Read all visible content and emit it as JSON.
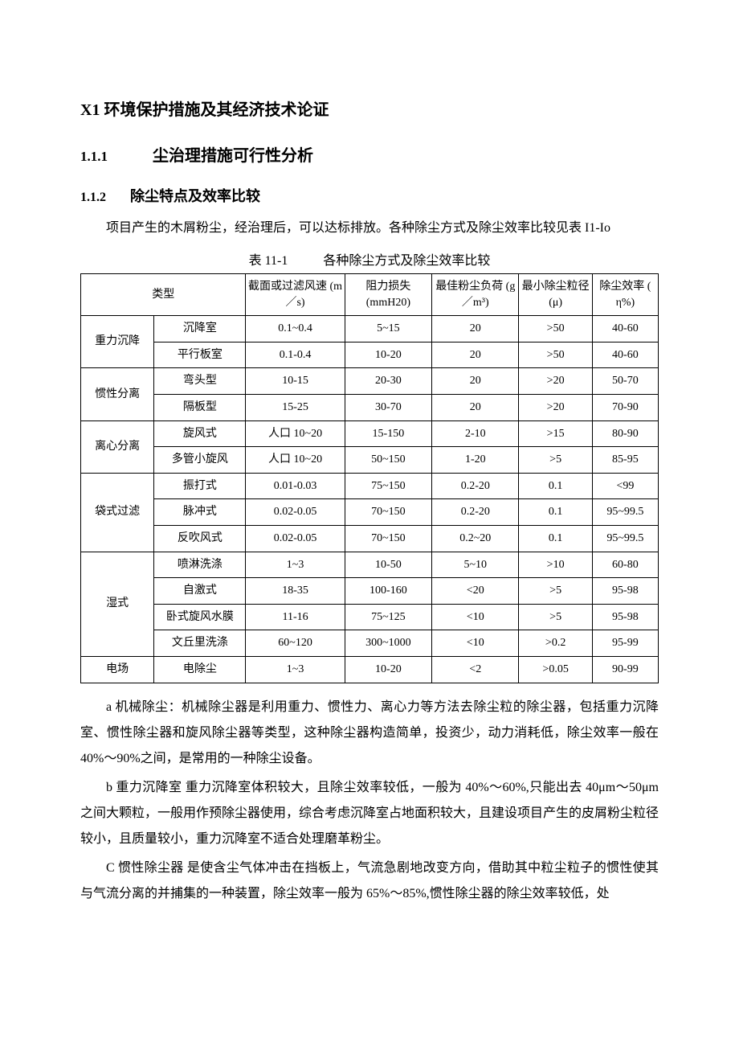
{
  "title": "X1 环境保护措施及其经济技术论证",
  "section_num": "1.1.1",
  "section_text": "尘治理措施可行性分析",
  "subsection_num": "1.1.2",
  "subsection_text": "除尘特点及效率比较",
  "intro_para": "项目产生的木屑粉尘，经治理后，可以达标排放。各种除尘方式及除尘效率比较见表 I1-Io",
  "table_num": "表 11-1",
  "table_title": "各种除尘方式及除尘效率比较",
  "headers": {
    "type": "类型",
    "velocity": "截面或过滤风速 (m／s)",
    "pressure_loss": "阻力损失 (mmH20)",
    "dust_load": "最佳粉尘负荷 (g／m³)",
    "min_particle": "最小除尘粒径 (μ)",
    "efficiency": "除尘效率 ( η%)"
  },
  "rows": [
    {
      "cat": "重力沉降",
      "sub": "沉降室",
      "v": "0.1~0.4",
      "loss": "5~15",
      "load": "20",
      "min": ">50",
      "eff": "40-60"
    },
    {
      "cat": "",
      "sub": "平行板室",
      "v": "0.1-0.4",
      "loss": "10-20",
      "load": "20",
      "min": ">50",
      "eff": "40-60"
    },
    {
      "cat": "惯性分离",
      "sub": "弯头型",
      "v": "10-15",
      "loss": "20-30",
      "load": "20",
      "min": ">20",
      "eff": "50-70"
    },
    {
      "cat": "",
      "sub": "隔板型",
      "v": "15-25",
      "loss": "30-70",
      "load": "20",
      "min": ">20",
      "eff": "70-90"
    },
    {
      "cat": "离心分离",
      "sub": "旋风式",
      "v": "人口 10~20",
      "loss": "15-150",
      "load": "2-10",
      "min": ">15",
      "eff": "80-90"
    },
    {
      "cat": "",
      "sub": "多管小旋风",
      "v": "人口 10~20",
      "loss": "50~150",
      "load": "1-20",
      "min": ">5",
      "eff": "85-95"
    },
    {
      "cat": "袋式过滤",
      "sub": "振打式",
      "v": "0.01-0.03",
      "loss": "75~150",
      "load": "0.2-20",
      "min": "0.1",
      "eff": "<99"
    },
    {
      "cat": "",
      "sub": "脉冲式",
      "v": "0.02-0.05",
      "loss": "70~150",
      "load": "0.2-20",
      "min": "0.1",
      "eff": "95~99.5"
    },
    {
      "cat": "",
      "sub": "反吹风式",
      "v": "0.02-0.05",
      "loss": "70~150",
      "load": "0.2~20",
      "min": "0.1",
      "eff": "95~99.5"
    },
    {
      "cat": "湿式",
      "sub": "喷淋洗涤",
      "v": "1~3",
      "loss": "10-50",
      "load": "5~10",
      "min": ">10",
      "eff": "60-80"
    },
    {
      "cat": "",
      "sub": "自激式",
      "v": "18-35",
      "loss": "100-160",
      "load": "<20",
      "min": ">5",
      "eff": "95-98"
    },
    {
      "cat": "",
      "sub": "卧式旋风水膜",
      "v": "11-16",
      "loss": "75~125",
      "load": "<10",
      "min": ">5",
      "eff": "95-98"
    },
    {
      "cat": "",
      "sub": "文丘里洗涤",
      "v": "60~120",
      "loss": "300~1000",
      "load": "<10",
      "min": ">0.2",
      "eff": "95-99"
    },
    {
      "cat": "电场",
      "sub": "电除尘",
      "v": "1~3",
      "loss": "10-20",
      "load": "<2",
      "min": ">0.05",
      "eff": "90-99"
    }
  ],
  "cat_spans": {
    "重力沉降": 2,
    "惯性分离": 2,
    "离心分离": 2,
    "袋式过滤": 3,
    "湿式": 4,
    "电场": 1
  },
  "para_a": "a 机械除尘：机械除尘器是利用重力、惯性力、离心力等方法去除尘粒的除尘器，包括重力沉降室、惯性除尘器和旋风除尘器等类型，这种除尘器构造简单，投资少，动力消耗低，除尘效率一般在 40%～90%之间，是常用的一种除尘设备。",
  "para_b": "b 重力沉降室 重力沉降室体积较大，且除尘效率较低，一般为 40%～60%,只能出去 40μm～50μm 之间大颗粒，一般用作预除尘器使用，综合考虑沉降室占地面积较大，且建设项目产生的皮屑粉尘粒径较小，且质量较小，重力沉降室不适合处理磨革粉尘。",
  "para_c": "C 惯性除尘器 是使含尘气体冲击在挡板上，气流急剧地改变方向，借助其中粒尘粒子的惯性使其与气流分离的并捕集的一种装置，除尘效率一般为 65%～85%,惯性除尘器的除尘效率较低，处"
}
